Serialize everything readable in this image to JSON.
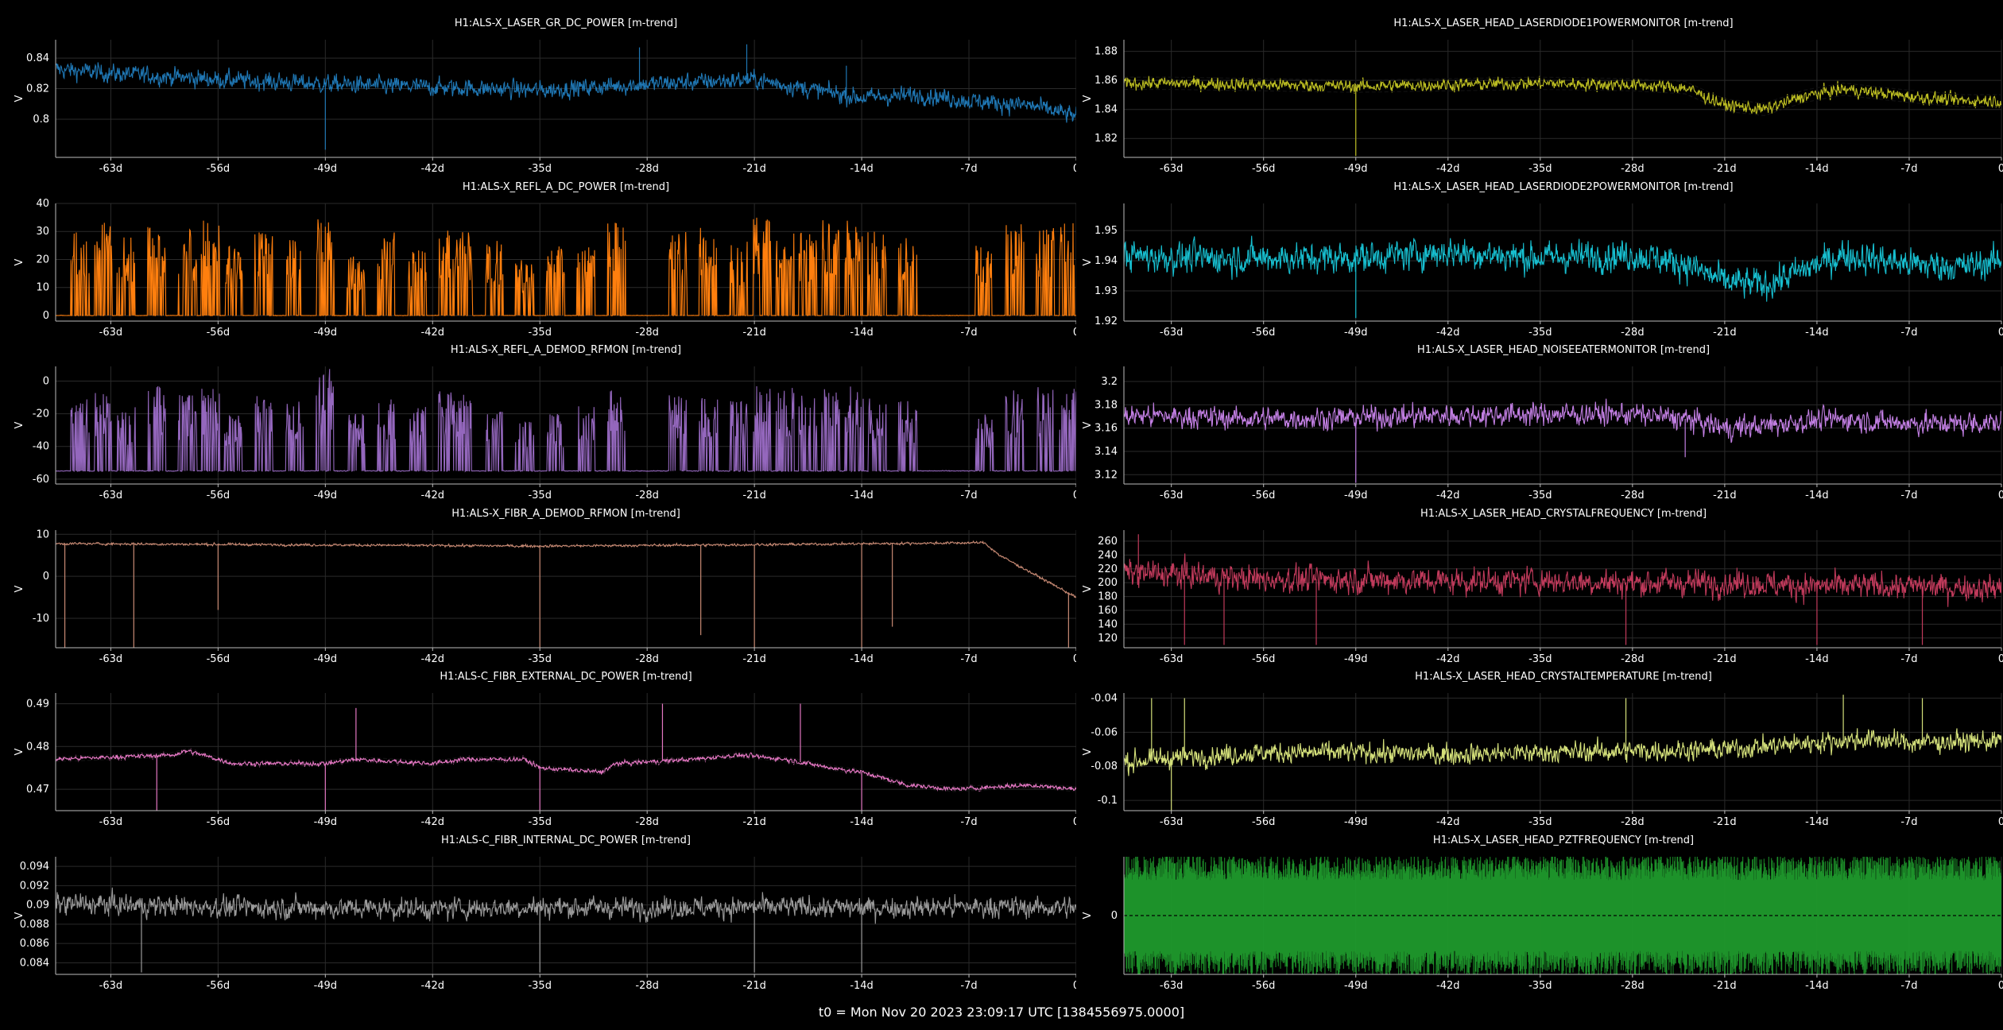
{
  "footer": "t0 = Mon Nov 20 2023 23:09:17 UTC [1384556975.0000]",
  "chart_data": [
    {
      "type": "line",
      "title": "H1:ALS-X_LASER_GR_DC_POWER [m-trend]",
      "ylabel": "V",
      "color": "#1f77b4",
      "ylim": [
        0.775,
        0.852
      ],
      "yticks": [
        "0.8",
        "0.82",
        "0.84"
      ],
      "ytick_values": [
        0.8,
        0.82,
        0.84
      ],
      "x": [
        -67,
        -63,
        -56,
        -49,
        -42,
        -35,
        -28,
        -21,
        -17,
        -14,
        -10,
        -7,
        -3,
        0
      ],
      "values": [
        0.833,
        0.83,
        0.826,
        0.823,
        0.821,
        0.819,
        0.823,
        0.826,
        0.819,
        0.814,
        0.816,
        0.812,
        0.809,
        0.802
      ],
      "noise": 0.008,
      "spikes": [
        [
          -49,
          0.78
        ],
        [
          -28.5,
          0.847
        ],
        [
          -21.5,
          0.849
        ],
        [
          -15,
          0.835
        ]
      ]
    },
    {
      "type": "line",
      "title": "H1:ALS-X_LASER_HEAD_LASERDIODE1POWERMONITOR [m-trend]",
      "ylabel": "V",
      "color": "#bcbd22",
      "ylim": [
        1.807,
        1.888
      ],
      "yticks": [
        "1.82",
        "1.84",
        "1.86",
        "1.88"
      ],
      "ytick_values": [
        1.82,
        1.84,
        1.86,
        1.88
      ],
      "x": [
        -67,
        -63,
        -56,
        -49,
        -42,
        -35,
        -28,
        -24,
        -21,
        -18,
        -15,
        -12,
        -7,
        -3,
        0
      ],
      "values": [
        1.858,
        1.858,
        1.857,
        1.856,
        1.857,
        1.858,
        1.857,
        1.855,
        1.843,
        1.84,
        1.849,
        1.854,
        1.849,
        1.846,
        1.846
      ],
      "noise": 0.006,
      "band": true,
      "spikes": [
        [
          -49,
          1.808
        ]
      ]
    },
    {
      "type": "line",
      "title": "H1:ALS-X_REFL_A_DC_POWER [m-trend]",
      "ylabel": "V",
      "color": "#ff7f0e",
      "ylim": [
        -2,
        40
      ],
      "yticks": [
        "0",
        "10",
        "20",
        "30",
        "40"
      ],
      "ytick_values": [
        0,
        10,
        20,
        30,
        40
      ],
      "x": [
        -67,
        0
      ],
      "values": [
        0,
        0
      ],
      "noise": 0.1,
      "bursts": [
        [
          -65,
          30
        ],
        [
          -63.5,
          35
        ],
        [
          -62,
          28
        ],
        [
          -60,
          33
        ],
        [
          -58,
          31
        ],
        [
          -56.5,
          34
        ],
        [
          -55,
          25
        ],
        [
          -53,
          30
        ],
        [
          -51,
          28
        ],
        [
          -49,
          36
        ],
        [
          -47,
          22
        ],
        [
          -45,
          30
        ],
        [
          -43,
          26
        ],
        [
          -41,
          33
        ],
        [
          -40,
          30
        ],
        [
          -38,
          27
        ],
        [
          -36,
          20
        ],
        [
          -34,
          25
        ],
        [
          -32,
          26
        ],
        [
          -30,
          34
        ],
        [
          -26,
          30
        ],
        [
          -24,
          33
        ],
        [
          -22,
          27
        ],
        [
          -20.5,
          35
        ],
        [
          -19,
          33
        ],
        [
          -17.5,
          30
        ],
        [
          -16,
          35
        ],
        [
          -14.5,
          35
        ],
        [
          -13,
          30
        ],
        [
          -11,
          28
        ],
        [
          -6,
          25
        ],
        [
          -4,
          33
        ],
        [
          -2,
          32
        ],
        [
          -0.5,
          33
        ]
      ]
    },
    {
      "type": "line",
      "title": "H1:ALS-X_LASER_HEAD_LASERDIODE2POWERMONITOR [m-trend]",
      "ylabel": "V",
      "color": "#17becf",
      "ylim": [
        1.92,
        1.959
      ],
      "yticks": [
        "1.92",
        "1.93",
        "1.94",
        "1.95"
      ],
      "ytick_values": [
        1.92,
        1.93,
        1.94,
        1.95
      ],
      "x": [
        -67,
        -63,
        -56,
        -49,
        -42,
        -35,
        -28,
        -24,
        -21,
        -18,
        -15,
        -12,
        -7,
        -3,
        0
      ],
      "values": [
        1.942,
        1.941,
        1.941,
        1.941,
        1.943,
        1.941,
        1.942,
        1.939,
        1.933,
        1.932,
        1.937,
        1.942,
        1.939,
        1.938,
        1.94
      ],
      "noise": 0.007,
      "spikes": [
        [
          -49,
          1.921
        ]
      ]
    },
    {
      "type": "line",
      "title": "H1:ALS-X_REFL_A_DEMOD_RFMON [m-trend]",
      "ylabel": "V",
      "color": "#9467bd",
      "ylim": [
        -63,
        9
      ],
      "yticks": [
        "-60",
        "-40",
        "-20",
        "0"
      ],
      "ytick_values": [
        -60,
        -40,
        -20,
        0
      ],
      "x": [
        -67,
        0
      ],
      "values": [
        -55,
        -55
      ],
      "noise": 0.3,
      "burst_up": true,
      "bursts": [
        [
          -65,
          -10
        ],
        [
          -63.5,
          -5
        ],
        [
          -62,
          -15
        ],
        [
          -60,
          -2
        ],
        [
          -58,
          -8
        ],
        [
          -56.5,
          -3
        ],
        [
          -55,
          -20
        ],
        [
          -53,
          -8
        ],
        [
          -51,
          -12
        ],
        [
          -49,
          8
        ],
        [
          -47,
          -20
        ],
        [
          -45,
          -10
        ],
        [
          -43,
          -15
        ],
        [
          -41,
          -5
        ],
        [
          -40,
          -8
        ],
        [
          -38,
          -12
        ],
        [
          -36,
          -25
        ],
        [
          -34,
          -20
        ],
        [
          -32,
          -15
        ],
        [
          -30,
          -5
        ],
        [
          -26,
          -8
        ],
        [
          -24,
          -10
        ],
        [
          -22,
          -12
        ],
        [
          -20.5,
          -2
        ],
        [
          -19,
          -3
        ],
        [
          -17.5,
          -8
        ],
        [
          -16,
          -3
        ],
        [
          -14.5,
          -3
        ],
        [
          -13,
          -10
        ],
        [
          -11,
          -12
        ],
        [
          -6,
          -20
        ],
        [
          -4,
          -5
        ],
        [
          -2,
          -3
        ],
        [
          -0.5,
          -4
        ]
      ]
    },
    {
      "type": "line",
      "title": "H1:ALS-X_LASER_HEAD_NOISEEATERMONITOR [m-trend]",
      "ylabel": "V",
      "color": "#c27fe3",
      "ylim": [
        3.112,
        3.213
      ],
      "yticks": [
        "3.12",
        "3.14",
        "3.16",
        "3.18",
        "3.2"
      ],
      "ytick_values": [
        3.12,
        3.14,
        3.16,
        3.18,
        3.2
      ],
      "x": [
        -67,
        -63,
        -56,
        -49,
        -42,
        -35,
        -28,
        -24,
        -21,
        -18,
        -15,
        -12,
        -7,
        -3,
        0
      ],
      "values": [
        3.171,
        3.17,
        3.168,
        3.169,
        3.171,
        3.172,
        3.172,
        3.168,
        3.16,
        3.162,
        3.166,
        3.168,
        3.164,
        3.164,
        3.165
      ],
      "noise": 0.013,
      "spikes": [
        [
          -49,
          3.113
        ],
        [
          -24,
          3.135
        ]
      ]
    },
    {
      "type": "line",
      "title": "H1:ALS-X_FIBR_A_DEMOD_RFMON [m-trend]",
      "ylabel": "V",
      "color": "#c88a74",
      "ylim": [
        -17,
        11
      ],
      "yticks": [
        "-10",
        "0",
        "10"
      ],
      "ytick_values": [
        -10,
        0,
        10
      ],
      "x": [
        -67,
        -35,
        -22,
        -6,
        -5,
        0
      ],
      "values": [
        7.8,
        7.2,
        7.5,
        8.0,
        5.0,
        -5.0
      ],
      "noise": 0.4,
      "spikes": [
        [
          -66,
          -17
        ],
        [
          -61.5,
          -17
        ],
        [
          -56,
          -8
        ],
        [
          -35,
          -17
        ],
        [
          -24.5,
          -14
        ],
        [
          -21,
          -17
        ],
        [
          -14,
          -17
        ],
        [
          -12,
          -12
        ],
        [
          -0.5,
          -17
        ]
      ]
    },
    {
      "type": "line",
      "title": "H1:ALS-X_LASER_HEAD_CRYSTALFREQUENCY [m-trend]",
      "ylabel": "V",
      "color": "#c03a5b",
      "ylim": [
        106,
        276
      ],
      "yticks": [
        "120",
        "140",
        "160",
        "180",
        "200",
        "220",
        "240",
        "260"
      ],
      "ytick_values": [
        120,
        140,
        160,
        180,
        200,
        220,
        240,
        260
      ],
      "x": [
        -67,
        -63,
        -56,
        -49,
        -42,
        -35,
        -28,
        -21,
        -14,
        -7,
        0
      ],
      "values": [
        215,
        212,
        205,
        205,
        202,
        203,
        200,
        200,
        195,
        195,
        192
      ],
      "noise": 26,
      "spikes": [
        [
          -62,
          110
        ],
        [
          -59,
          110
        ],
        [
          -52,
          110
        ],
        [
          -28.5,
          110
        ],
        [
          -14,
          110
        ],
        [
          -6,
          110
        ],
        [
          -65.5,
          270
        ]
      ]
    },
    {
      "type": "line",
      "title": "H1:ALS-C_FIBR_EXTERNAL_DC_POWER [m-trend]",
      "ylabel": "V",
      "color": "#e377c2",
      "ylim": [
        0.465,
        0.4925
      ],
      "yticks": [
        "0.47",
        "0.48",
        "0.49"
      ],
      "ytick_values": [
        0.47,
        0.48,
        0.49
      ],
      "x": [
        -67,
        -59,
        -58,
        -56,
        -55,
        -49,
        -47,
        -42,
        -40,
        -36,
        -35,
        -31,
        -30,
        -25,
        -22,
        -19,
        -16,
        -14,
        -11,
        -8,
        -3,
        0
      ],
      "values": [
        0.477,
        0.478,
        0.479,
        0.477,
        0.476,
        0.476,
        0.477,
        0.476,
        0.477,
        0.477,
        0.475,
        0.474,
        0.476,
        0.477,
        0.478,
        0.477,
        0.475,
        0.474,
        0.471,
        0.47,
        0.471,
        0.47
      ],
      "noise": 0.0008,
      "band": true,
      "spikes": [
        [
          -60,
          0.465
        ],
        [
          -49,
          0.465
        ],
        [
          -35,
          0.465
        ],
        [
          -14,
          0.465
        ],
        [
          -47,
          0.489
        ],
        [
          -27,
          0.49
        ],
        [
          -18,
          0.49
        ]
      ]
    },
    {
      "type": "line",
      "title": "H1:ALS-X_LASER_HEAD_CRYSTALTEMPERATURE [m-trend]",
      "ylabel": "V",
      "color": "#d4e07a",
      "ylim": [
        -0.106,
        -0.037
      ],
      "yticks": [
        "-0.1",
        "-0.08",
        "-0.06",
        "-0.04"
      ],
      "ytick_values": [
        -0.1,
        -0.08,
        -0.06,
        -0.04
      ],
      "x": [
        -67,
        -63,
        -56,
        -49,
        -42,
        -35,
        -28,
        -21,
        -14,
        -10,
        -7,
        0
      ],
      "values": [
        -0.078,
        -0.075,
        -0.072,
        -0.072,
        -0.073,
        -0.072,
        -0.071,
        -0.07,
        -0.066,
        -0.064,
        -0.066,
        -0.065
      ],
      "noise": 0.008,
      "spikes": [
        [
          -64.5,
          -0.04
        ],
        [
          -63,
          -0.106
        ],
        [
          -62,
          -0.04
        ],
        [
          -28.5,
          -0.04
        ],
        [
          -12,
          -0.038
        ],
        [
          -6,
          -0.04
        ]
      ]
    },
    {
      "type": "line",
      "title": "H1:ALS-C_FIBR_INTERNAL_DC_POWER [m-trend]",
      "ylabel": "V",
      "color": "#9a9a9a",
      "ylim": [
        0.0828,
        0.095
      ],
      "yticks": [
        "0.084",
        "0.086",
        "0.088",
        "0.09",
        "0.092",
        "0.094"
      ],
      "ytick_values": [
        0.084,
        0.086,
        0.088,
        0.09,
        0.092,
        0.094
      ],
      "x": [
        -67,
        -63,
        -56,
        -49,
        -42,
        -35,
        -28,
        -21,
        -14,
        -7,
        0
      ],
      "values": [
        0.0902,
        0.09,
        0.0898,
        0.0897,
        0.0896,
        0.0898,
        0.0897,
        0.0898,
        0.0897,
        0.0898,
        0.0897
      ],
      "noise": 0.0015,
      "spikes": [
        [
          -61,
          0.083
        ],
        [
          -35,
          0.083
        ],
        [
          -21,
          0.083
        ],
        [
          -14,
          0.083
        ]
      ]
    },
    {
      "type": "line",
      "title": "H1:ALS-X_LASER_HEAD_PZTFREQUENCY [m-trend]",
      "ylabel": "V",
      "color": "#1f9a2c",
      "ylim": [
        -1.4,
        1.4
      ],
      "yticks": [
        "0"
      ],
      "ytick_values": [
        0
      ],
      "x": [
        -67,
        0
      ],
      "values": [
        0,
        0
      ],
      "noise": 1.2,
      "fill": true,
      "spikes": []
    }
  ],
  "x_axis": {
    "ticks": [
      "-63d",
      "-56d",
      "-49d",
      "-42d",
      "-35d",
      "-28d",
      "-21d",
      "-14d",
      "-7d",
      "0"
    ],
    "tick_values": [
      -63,
      -56,
      -49,
      -42,
      -35,
      -28,
      -21,
      -14,
      -7,
      0
    ],
    "range": [
      -66.6,
      0
    ]
  }
}
